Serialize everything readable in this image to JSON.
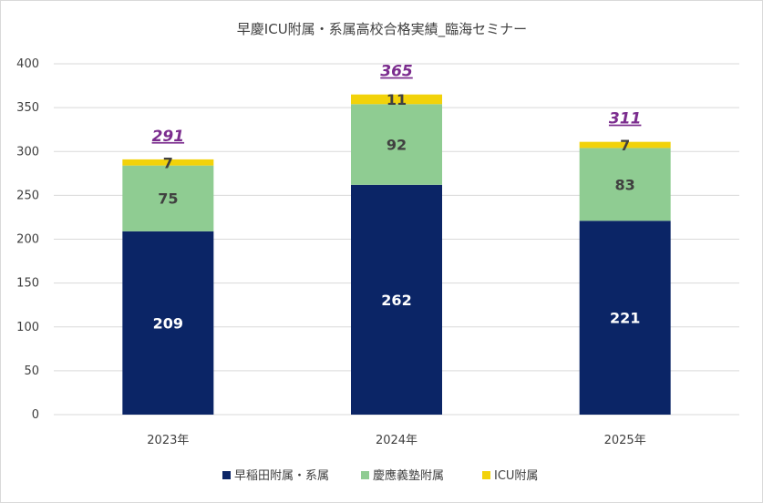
{
  "chart_data": {
    "type": "bar",
    "stacked": true,
    "title": "早慶ICU附属・系属高校合格実績_臨海セミナー",
    "categories": [
      "2023年",
      "2024年",
      "2025年"
    ],
    "series": [
      {
        "name": "早稲田附属・系属",
        "values": [
          209,
          262,
          221
        ],
        "color": "#0b2566"
      },
      {
        "name": "慶應義塾附属",
        "values": [
          75,
          92,
          83
        ],
        "color": "#8fcc92"
      },
      {
        "name": "ICU附属",
        "values": [
          7,
          11,
          7
        ],
        "color": "#f2d20a"
      }
    ],
    "totals": [
      291,
      365,
      311
    ],
    "total_color": "#7b2c8e",
    "ylim": [
      0,
      400
    ],
    "yticks": [
      0,
      50,
      100,
      150,
      200,
      250,
      300,
      350,
      400
    ],
    "grid": true,
    "legend_position": "bottom"
  }
}
